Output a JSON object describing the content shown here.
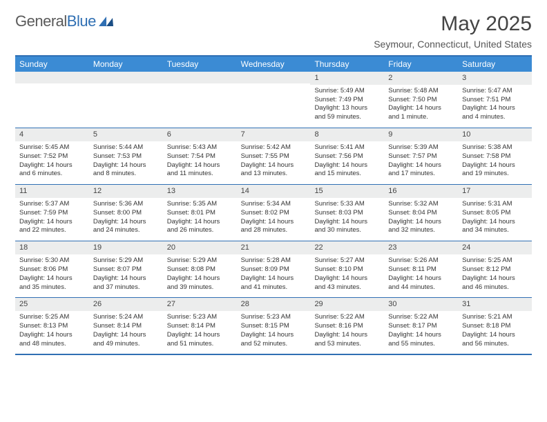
{
  "logo": {
    "word1": "General",
    "word2": "Blue"
  },
  "title": "May 2025",
  "location": "Seymour, Connecticut, United States",
  "colors": {
    "accent": "#3b8bd4",
    "border": "#2f6fb3",
    "dayBg": "#eceded",
    "text": "#333333",
    "headerText": "#ffffff"
  },
  "daysOfWeek": [
    "Sunday",
    "Monday",
    "Tuesday",
    "Wednesday",
    "Thursday",
    "Friday",
    "Saturday"
  ],
  "weeks": [
    [
      {
        "num": "",
        "sunrise": "",
        "sunset": "",
        "daylight": ""
      },
      {
        "num": "",
        "sunrise": "",
        "sunset": "",
        "daylight": ""
      },
      {
        "num": "",
        "sunrise": "",
        "sunset": "",
        "daylight": ""
      },
      {
        "num": "",
        "sunrise": "",
        "sunset": "",
        "daylight": ""
      },
      {
        "num": "1",
        "sunrise": "Sunrise: 5:49 AM",
        "sunset": "Sunset: 7:49 PM",
        "daylight": "Daylight: 13 hours and 59 minutes."
      },
      {
        "num": "2",
        "sunrise": "Sunrise: 5:48 AM",
        "sunset": "Sunset: 7:50 PM",
        "daylight": "Daylight: 14 hours and 1 minute."
      },
      {
        "num": "3",
        "sunrise": "Sunrise: 5:47 AM",
        "sunset": "Sunset: 7:51 PM",
        "daylight": "Daylight: 14 hours and 4 minutes."
      }
    ],
    [
      {
        "num": "4",
        "sunrise": "Sunrise: 5:45 AM",
        "sunset": "Sunset: 7:52 PM",
        "daylight": "Daylight: 14 hours and 6 minutes."
      },
      {
        "num": "5",
        "sunrise": "Sunrise: 5:44 AM",
        "sunset": "Sunset: 7:53 PM",
        "daylight": "Daylight: 14 hours and 8 minutes."
      },
      {
        "num": "6",
        "sunrise": "Sunrise: 5:43 AM",
        "sunset": "Sunset: 7:54 PM",
        "daylight": "Daylight: 14 hours and 11 minutes."
      },
      {
        "num": "7",
        "sunrise": "Sunrise: 5:42 AM",
        "sunset": "Sunset: 7:55 PM",
        "daylight": "Daylight: 14 hours and 13 minutes."
      },
      {
        "num": "8",
        "sunrise": "Sunrise: 5:41 AM",
        "sunset": "Sunset: 7:56 PM",
        "daylight": "Daylight: 14 hours and 15 minutes."
      },
      {
        "num": "9",
        "sunrise": "Sunrise: 5:39 AM",
        "sunset": "Sunset: 7:57 PM",
        "daylight": "Daylight: 14 hours and 17 minutes."
      },
      {
        "num": "10",
        "sunrise": "Sunrise: 5:38 AM",
        "sunset": "Sunset: 7:58 PM",
        "daylight": "Daylight: 14 hours and 19 minutes."
      }
    ],
    [
      {
        "num": "11",
        "sunrise": "Sunrise: 5:37 AM",
        "sunset": "Sunset: 7:59 PM",
        "daylight": "Daylight: 14 hours and 22 minutes."
      },
      {
        "num": "12",
        "sunrise": "Sunrise: 5:36 AM",
        "sunset": "Sunset: 8:00 PM",
        "daylight": "Daylight: 14 hours and 24 minutes."
      },
      {
        "num": "13",
        "sunrise": "Sunrise: 5:35 AM",
        "sunset": "Sunset: 8:01 PM",
        "daylight": "Daylight: 14 hours and 26 minutes."
      },
      {
        "num": "14",
        "sunrise": "Sunrise: 5:34 AM",
        "sunset": "Sunset: 8:02 PM",
        "daylight": "Daylight: 14 hours and 28 minutes."
      },
      {
        "num": "15",
        "sunrise": "Sunrise: 5:33 AM",
        "sunset": "Sunset: 8:03 PM",
        "daylight": "Daylight: 14 hours and 30 minutes."
      },
      {
        "num": "16",
        "sunrise": "Sunrise: 5:32 AM",
        "sunset": "Sunset: 8:04 PM",
        "daylight": "Daylight: 14 hours and 32 minutes."
      },
      {
        "num": "17",
        "sunrise": "Sunrise: 5:31 AM",
        "sunset": "Sunset: 8:05 PM",
        "daylight": "Daylight: 14 hours and 34 minutes."
      }
    ],
    [
      {
        "num": "18",
        "sunrise": "Sunrise: 5:30 AM",
        "sunset": "Sunset: 8:06 PM",
        "daylight": "Daylight: 14 hours and 35 minutes."
      },
      {
        "num": "19",
        "sunrise": "Sunrise: 5:29 AM",
        "sunset": "Sunset: 8:07 PM",
        "daylight": "Daylight: 14 hours and 37 minutes."
      },
      {
        "num": "20",
        "sunrise": "Sunrise: 5:29 AM",
        "sunset": "Sunset: 8:08 PM",
        "daylight": "Daylight: 14 hours and 39 minutes."
      },
      {
        "num": "21",
        "sunrise": "Sunrise: 5:28 AM",
        "sunset": "Sunset: 8:09 PM",
        "daylight": "Daylight: 14 hours and 41 minutes."
      },
      {
        "num": "22",
        "sunrise": "Sunrise: 5:27 AM",
        "sunset": "Sunset: 8:10 PM",
        "daylight": "Daylight: 14 hours and 43 minutes."
      },
      {
        "num": "23",
        "sunrise": "Sunrise: 5:26 AM",
        "sunset": "Sunset: 8:11 PM",
        "daylight": "Daylight: 14 hours and 44 minutes."
      },
      {
        "num": "24",
        "sunrise": "Sunrise: 5:25 AM",
        "sunset": "Sunset: 8:12 PM",
        "daylight": "Daylight: 14 hours and 46 minutes."
      }
    ],
    [
      {
        "num": "25",
        "sunrise": "Sunrise: 5:25 AM",
        "sunset": "Sunset: 8:13 PM",
        "daylight": "Daylight: 14 hours and 48 minutes."
      },
      {
        "num": "26",
        "sunrise": "Sunrise: 5:24 AM",
        "sunset": "Sunset: 8:14 PM",
        "daylight": "Daylight: 14 hours and 49 minutes."
      },
      {
        "num": "27",
        "sunrise": "Sunrise: 5:23 AM",
        "sunset": "Sunset: 8:14 PM",
        "daylight": "Daylight: 14 hours and 51 minutes."
      },
      {
        "num": "28",
        "sunrise": "Sunrise: 5:23 AM",
        "sunset": "Sunset: 8:15 PM",
        "daylight": "Daylight: 14 hours and 52 minutes."
      },
      {
        "num": "29",
        "sunrise": "Sunrise: 5:22 AM",
        "sunset": "Sunset: 8:16 PM",
        "daylight": "Daylight: 14 hours and 53 minutes."
      },
      {
        "num": "30",
        "sunrise": "Sunrise: 5:22 AM",
        "sunset": "Sunset: 8:17 PM",
        "daylight": "Daylight: 14 hours and 55 minutes."
      },
      {
        "num": "31",
        "sunrise": "Sunrise: 5:21 AM",
        "sunset": "Sunset: 8:18 PM",
        "daylight": "Daylight: 14 hours and 56 minutes."
      }
    ]
  ]
}
